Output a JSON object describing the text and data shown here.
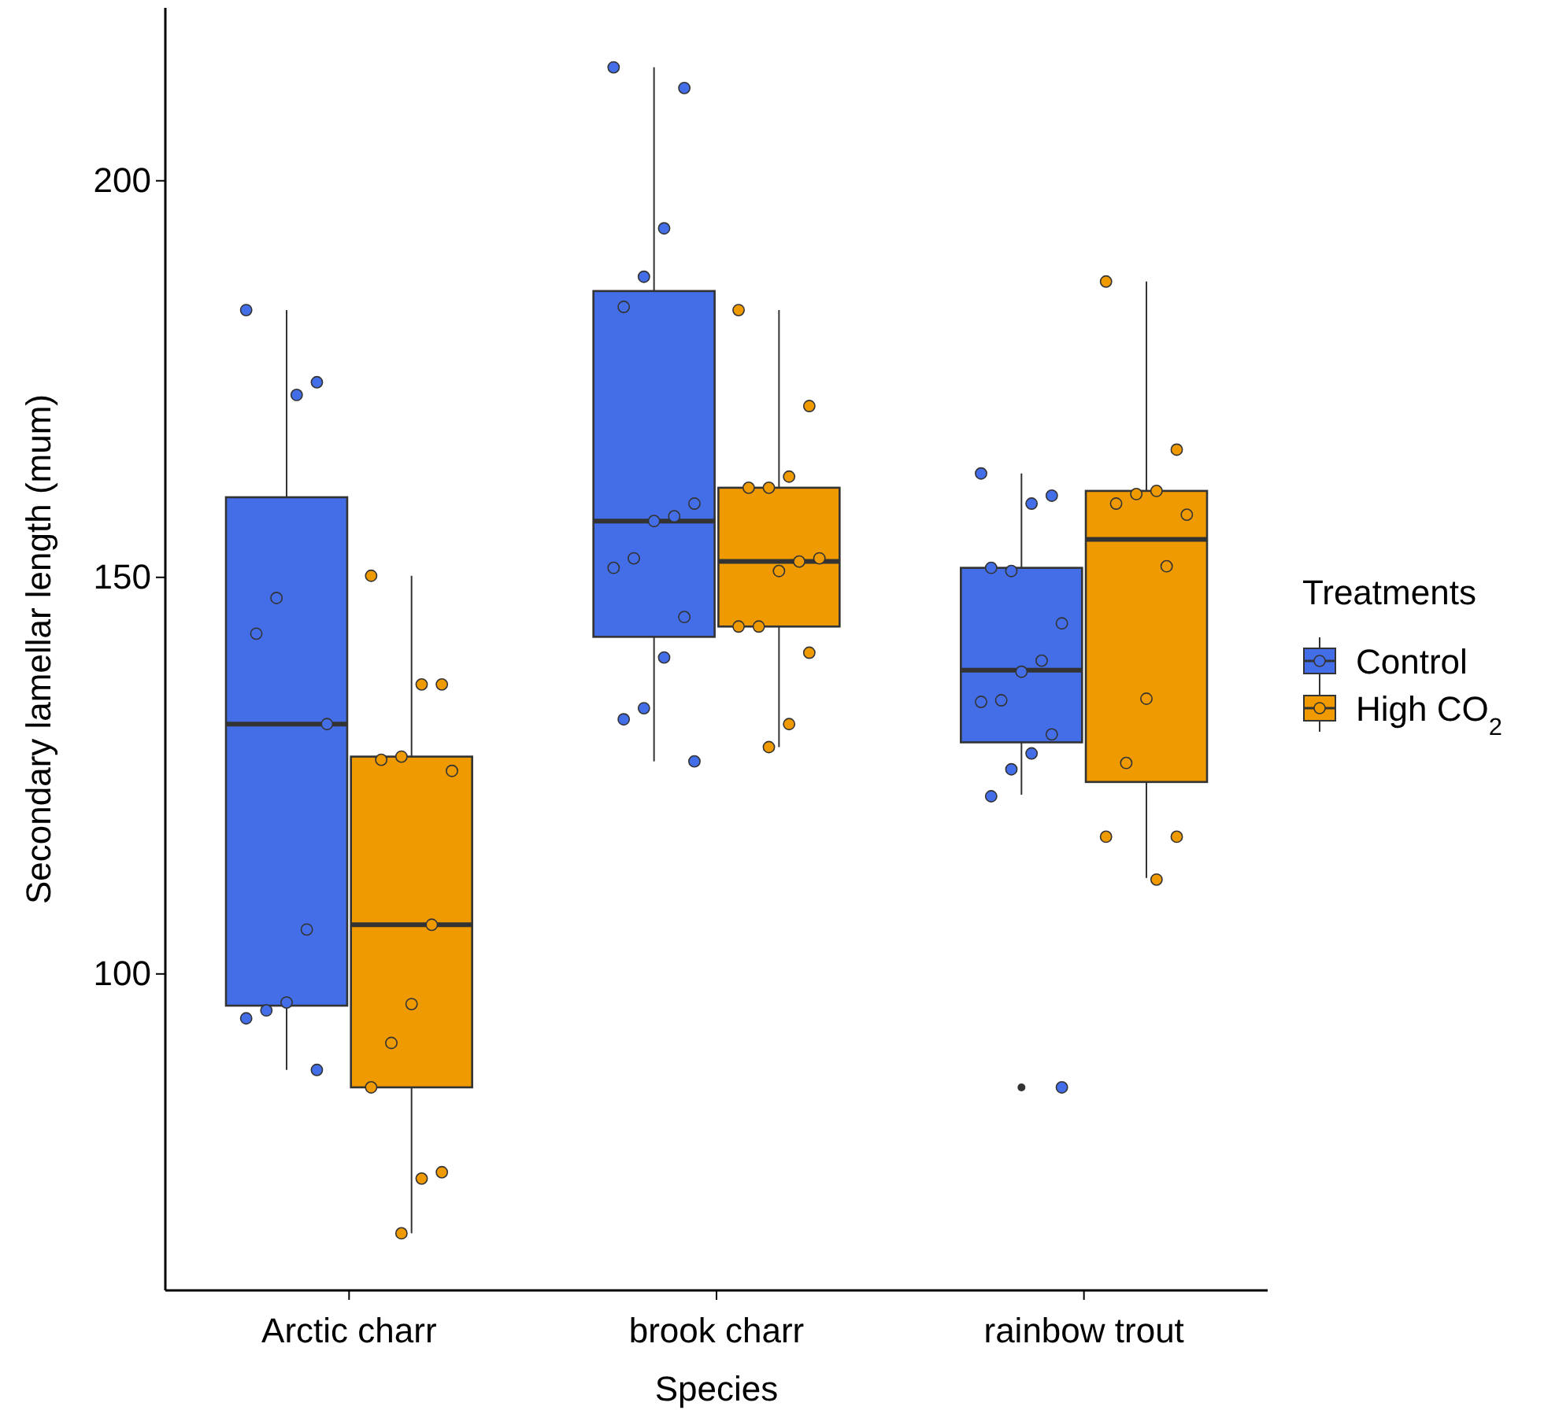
{
  "chart_data": {
    "type": "box",
    "xlabel": "Species",
    "ylabel": "Secondary lamellar length (mum)",
    "legend_title": "Treatments",
    "legend": "right",
    "grid": false,
    "marker": "circle",
    "categories": [
      "Arctic charr",
      "brook charr",
      "rainbow trout"
    ],
    "ylim": [
      60.1,
      221.8
    ],
    "yticks": [
      100,
      150,
      200
    ],
    "series": [
      {
        "name": "Control",
        "color": "#436ee8",
        "boxes": [
          {
            "low": 87.9,
            "q1": 96.0,
            "median": 131.5,
            "q3": 160.1,
            "high": 183.7
          },
          {
            "low": 126.8,
            "q1": 142.5,
            "median": 157.1,
            "q3": 186.1,
            "high": 214.3
          },
          {
            "low": 122.6,
            "q1": 129.2,
            "median": 138.3,
            "q3": 151.2,
            "high": 163.1,
            "outliers": [
              85.7
            ]
          }
        ]
      },
      {
        "name": "High CO$_{2}$",
        "color": "#ef9a00",
        "boxes": [
          {
            "low": 67.3,
            "q1": 85.7,
            "median": 106.2,
            "q3": 127.4,
            "high": 150.2
          },
          {
            "low": 128.6,
            "q1": 143.8,
            "median": 152.0,
            "q3": 161.3,
            "high": 183.7
          },
          {
            "low": 112.1,
            "q1": 124.2,
            "median": 154.8,
            "q3": 160.9,
            "high": 187.3
          }
        ]
      },
      {
        "type": "scatter",
        "color": "#436ee8",
        "x": [
          "Arctic charr",
          "Arctic charr",
          "Arctic charr",
          "Arctic charr",
          "Arctic charr",
          "Arctic charr",
          "Arctic charr",
          "Arctic charr",
          "Arctic charr",
          "Arctic charr",
          "Arctic charr",
          "brook charr",
          "brook charr",
          "brook charr",
          "brook charr",
          "brook charr",
          "brook charr",
          "brook charr",
          "brook charr",
          "brook charr",
          "brook charr",
          "brook charr",
          "brook charr",
          "brook charr",
          "brook charr",
          "brook charr",
          "rainbow trout",
          "rainbow trout",
          "rainbow trout",
          "rainbow trout",
          "rainbow trout",
          "rainbow trout",
          "rainbow trout",
          "rainbow trout",
          "rainbow trout",
          "rainbow trout",
          "rainbow trout",
          "rainbow trout",
          "rainbow trout",
          "rainbow trout",
          "rainbow trout"
        ],
        "values": [
          183.7,
          174.6,
          173.0,
          147.4,
          142.9,
          131.5,
          105.6,
          96.4,
          95.4,
          94.4,
          87.9,
          214.3,
          211.7,
          194.0,
          187.9,
          184.1,
          159.3,
          157.7,
          157.1,
          152.4,
          151.2,
          145.0,
          139.9,
          133.5,
          132.1,
          126.8,
          163.1,
          160.3,
          159.3,
          150.8,
          151.2,
          144.2,
          139.5,
          138.1,
          134.5,
          134.3,
          130.2,
          127.8,
          125.8,
          122.4,
          85.7
        ]
      },
      {
        "type": "scatter",
        "color": "#ef9a00",
        "x": [
          "Arctic charr",
          "Arctic charr",
          "Arctic charr",
          "Arctic charr",
          "Arctic charr",
          "Arctic charr",
          "Arctic charr",
          "Arctic charr",
          "Arctic charr",
          "Arctic charr",
          "Arctic charr",
          "Arctic charr",
          "Arctic charr",
          "brook charr",
          "brook charr",
          "brook charr",
          "brook charr",
          "brook charr",
          "brook charr",
          "brook charr",
          "brook charr",
          "brook charr",
          "brook charr",
          "brook charr",
          "brook charr",
          "brook charr",
          "rainbow trout",
          "rainbow trout",
          "rainbow trout",
          "rainbow trout",
          "rainbow trout",
          "rainbow trout",
          "rainbow trout",
          "rainbow trout",
          "rainbow trout",
          "rainbow trout",
          "rainbow trout",
          "rainbow trout"
        ],
        "values": [
          150.2,
          136.5,
          136.5,
          127.4,
          127.0,
          125.6,
          106.2,
          96.2,
          91.3,
          85.7,
          75.0,
          74.2,
          67.3,
          183.7,
          171.6,
          162.7,
          161.3,
          161.3,
          152.4,
          152.0,
          150.8,
          143.8,
          143.8,
          140.5,
          131.5,
          128.6,
          187.3,
          166.1,
          160.9,
          160.5,
          159.3,
          157.9,
          151.4,
          134.7,
          126.6,
          117.3,
          117.3,
          111.9
        ]
      }
    ]
  }
}
